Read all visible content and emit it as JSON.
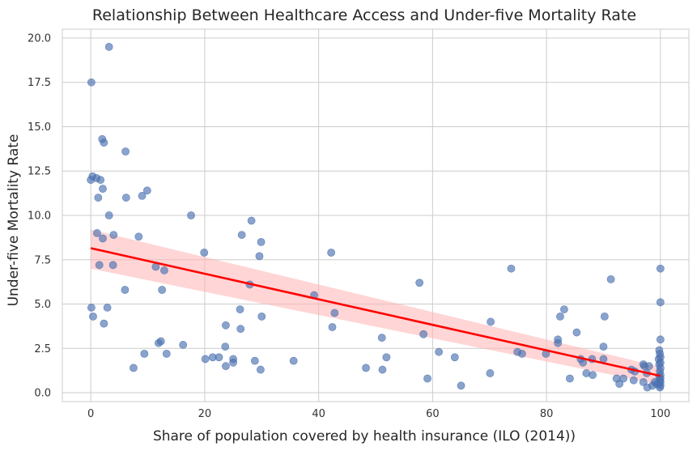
{
  "chart_data": {
    "type": "scatter",
    "title": "Relationship Between Healthcare Access and Under-five Mortality Rate",
    "xlabel": "Share of population covered by health insurance (ILO (2014))",
    "ylabel": "Under-five Mortality Rate",
    "xlim": [
      -5,
      105
    ],
    "ylim": [
      -0.5,
      20.5
    ],
    "xticks": [
      0,
      20,
      40,
      60,
      80,
      100
    ],
    "xtick_labels": [
      "0",
      "20",
      "40",
      "60",
      "80",
      "100"
    ],
    "yticks": [
      0,
      2.5,
      5,
      7.5,
      10,
      12.5,
      15,
      17.5,
      20
    ],
    "ytick_labels": [
      "0.0",
      "2.5",
      "5.0",
      "7.5",
      "10.0",
      "12.5",
      "15.0",
      "17.5",
      "20.0"
    ],
    "grid": true,
    "colors": {
      "points": "#4c72b0",
      "trend": "#ff0000",
      "band": "#ffb3b3"
    },
    "regression": {
      "x": [
        0,
        100
      ],
      "y": [
        8.15,
        0.95
      ]
    },
    "confidence_band": {
      "x": [
        0,
        100
      ],
      "upper": [
        9.2,
        1.45
      ],
      "lower": [
        7.0,
        0.45
      ]
    },
    "points": [
      [
        3.2,
        19.5
      ],
      [
        0.1,
        17.5
      ],
      [
        2.0,
        14.3
      ],
      [
        2.3,
        14.1
      ],
      [
        6.1,
        13.6
      ],
      [
        0.0,
        12.0
      ],
      [
        0.3,
        12.2
      ],
      [
        1.0,
        12.1
      ],
      [
        1.7,
        12.0
      ],
      [
        2.1,
        11.5
      ],
      [
        1.3,
        11.0
      ],
      [
        6.2,
        11.0
      ],
      [
        9.0,
        11.1
      ],
      [
        9.9,
        11.4
      ],
      [
        3.2,
        10.0
      ],
      [
        17.6,
        10.0
      ],
      [
        28.2,
        9.7
      ],
      [
        1.1,
        9.0
      ],
      [
        4.0,
        8.9
      ],
      [
        8.4,
        8.8
      ],
      [
        26.5,
        8.9
      ],
      [
        2.1,
        8.7
      ],
      [
        29.9,
        8.5
      ],
      [
        19.9,
        7.9
      ],
      [
        42.2,
        7.9
      ],
      [
        29.6,
        7.7
      ],
      [
        1.5,
        7.2
      ],
      [
        3.9,
        7.2
      ],
      [
        11.4,
        7.1
      ],
      [
        12.9,
        6.9
      ],
      [
        73.8,
        7.0
      ],
      [
        100.0,
        7.0
      ],
      [
        91.3,
        6.4
      ],
      [
        27.9,
        6.1
      ],
      [
        57.7,
        6.2
      ],
      [
        6.0,
        5.8
      ],
      [
        12.5,
        5.8
      ],
      [
        39.2,
        5.5
      ],
      [
        100.0,
        5.1
      ],
      [
        0.1,
        4.8
      ],
      [
        2.9,
        4.8
      ],
      [
        26.2,
        4.7
      ],
      [
        42.8,
        4.5
      ],
      [
        0.4,
        4.3
      ],
      [
        30.0,
        4.3
      ],
      [
        83.1,
        4.7
      ],
      [
        82.4,
        4.3
      ],
      [
        90.2,
        4.3
      ],
      [
        2.3,
        3.9
      ],
      [
        70.2,
        4.0
      ],
      [
        23.7,
        3.8
      ],
      [
        42.4,
        3.7
      ],
      [
        26.3,
        3.6
      ],
      [
        58.4,
        3.3
      ],
      [
        85.3,
        3.4
      ],
      [
        51.1,
        3.1
      ],
      [
        100.0,
        3.0
      ],
      [
        82.0,
        3.0
      ],
      [
        12.3,
        2.9
      ],
      [
        11.9,
        2.8
      ],
      [
        82.0,
        2.8
      ],
      [
        16.2,
        2.7
      ],
      [
        23.6,
        2.6
      ],
      [
        90.0,
        2.6
      ],
      [
        9.4,
        2.2
      ],
      [
        13.3,
        2.2
      ],
      [
        61.1,
        2.3
      ],
      [
        74.9,
        2.3
      ],
      [
        75.7,
        2.2
      ],
      [
        79.9,
        2.2
      ],
      [
        21.4,
        2.0
      ],
      [
        22.5,
        2.0
      ],
      [
        20.1,
        1.9
      ],
      [
        25.0,
        1.9
      ],
      [
        51.9,
        2.0
      ],
      [
        63.9,
        2.0
      ],
      [
        86.0,
        1.9
      ],
      [
        88.0,
        1.9
      ],
      [
        90.0,
        1.9
      ],
      [
        25.0,
        1.7
      ],
      [
        28.8,
        1.8
      ],
      [
        35.6,
        1.8
      ],
      [
        86.4,
        1.7
      ],
      [
        97.0,
        1.6
      ],
      [
        97.2,
        1.5
      ],
      [
        98.0,
        1.5
      ],
      [
        7.5,
        1.4
      ],
      [
        23.7,
        1.5
      ],
      [
        48.3,
        1.4
      ],
      [
        29.8,
        1.3
      ],
      [
        51.2,
        1.3
      ],
      [
        94.9,
        1.3
      ],
      [
        95.5,
        1.2
      ],
      [
        97.6,
        1.1
      ],
      [
        87.0,
        1.1
      ],
      [
        88.1,
        1.0
      ],
      [
        70.1,
        1.1
      ],
      [
        59.1,
        0.8
      ],
      [
        84.1,
        0.8
      ],
      [
        92.3,
        0.8
      ],
      [
        93.5,
        0.8
      ],
      [
        95.3,
        0.7
      ],
      [
        97.0,
        0.6
      ],
      [
        65.0,
        0.4
      ],
      [
        92.8,
        0.5
      ],
      [
        97.7,
        0.3
      ],
      [
        99.8,
        2.4
      ],
      [
        99.9,
        2.2
      ],
      [
        100.0,
        2.0
      ],
      [
        99.7,
        1.9
      ],
      [
        100.0,
        1.7
      ],
      [
        99.8,
        1.6
      ],
      [
        100.0,
        1.4
      ],
      [
        99.9,
        1.2
      ],
      [
        100.0,
        1.0
      ],
      [
        99.8,
        0.9
      ],
      [
        100.0,
        0.8
      ],
      [
        99.9,
        0.7
      ],
      [
        100.0,
        0.6
      ],
      [
        99.7,
        0.5
      ],
      [
        100.0,
        0.4
      ],
      [
        99.9,
        0.3
      ],
      [
        99.3,
        0.5
      ],
      [
        99.0,
        0.6
      ],
      [
        98.6,
        0.4
      ]
    ]
  }
}
